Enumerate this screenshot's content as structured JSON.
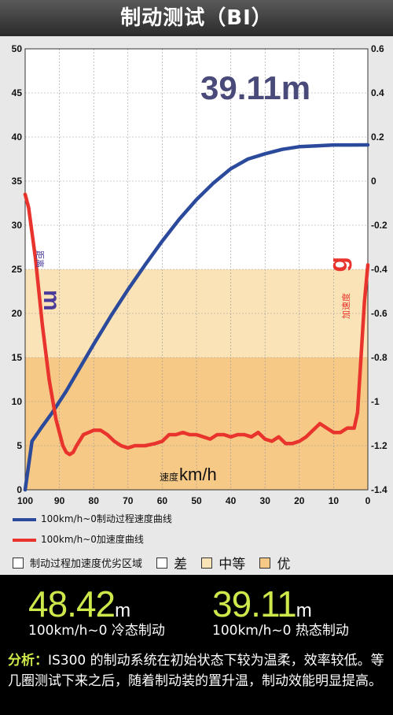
{
  "title": "制动测试（BI）",
  "chart_data": {
    "type": "line",
    "x_axis": {
      "ticks": [
        "100",
        "90",
        "80",
        "70",
        "60",
        "50",
        "40",
        "30",
        "20",
        "10",
        "0"
      ],
      "xlim": [
        100,
        0
      ],
      "unit_label": "速度",
      "unit": "km/h"
    },
    "y_left": {
      "ticks": [
        "0",
        "5",
        "10",
        "15",
        "20",
        "25",
        "30",
        "35",
        "40",
        "45",
        "50"
      ],
      "ylim": [
        0,
        50
      ],
      "label": "距离",
      "unit": "m"
    },
    "y_right": {
      "ticks": [
        "-1.4",
        "-1.2",
        "-1",
        "-0.8",
        "-0.6",
        "-0.4",
        "-0.2",
        "0",
        "0.2",
        "0.4",
        "0.6"
      ],
      "ylim": [
        -1.4,
        0.6
      ],
      "label": "加速度",
      "unit": "g"
    },
    "annotation": "39.11m",
    "zones": [
      {
        "name": "差",
        "color": "#ffffff",
        "range": [
          25,
          50
        ]
      },
      {
        "name": "中等",
        "color": "#fbe3b8",
        "range": [
          15,
          25
        ]
      },
      {
        "name": "优",
        "color": "#f7c986",
        "range": [
          0,
          15
        ]
      }
    ],
    "series": [
      {
        "name": "100km/h~0制动过程速度曲线",
        "color": "#2b4a9c",
        "axis": "left",
        "x": [
          100,
          98,
          95,
          92,
          88,
          85,
          80,
          75,
          70,
          65,
          60,
          55,
          50,
          45,
          40,
          35,
          30,
          25,
          20,
          15,
          10,
          5,
          0
        ],
        "y": [
          0,
          5.5,
          7.2,
          8.8,
          11.2,
          13.2,
          16.5,
          19.7,
          22.7,
          25.5,
          28.2,
          30.7,
          32.9,
          34.8,
          36.4,
          37.5,
          38.1,
          38.6,
          38.9,
          39.0,
          39.1,
          39.1,
          39.11
        ]
      },
      {
        "name": "100km/h~0加速度曲线",
        "color": "#e8342c",
        "axis": "right",
        "x": [
          100,
          99,
          97,
          95,
          93,
          91,
          89,
          88,
          87,
          86,
          85,
          83,
          80,
          78,
          76,
          74,
          72,
          70,
          68,
          65,
          62,
          60,
          58,
          56,
          54,
          52,
          50,
          48,
          46,
          44,
          42,
          40,
          38,
          36,
          34,
          32,
          30,
          28,
          26,
          24,
          22,
          20,
          18,
          16,
          14,
          12,
          10,
          8,
          6,
          4,
          3,
          2,
          1,
          0
        ],
        "y": [
          -0.06,
          -0.12,
          -0.35,
          -0.65,
          -0.9,
          -1.08,
          -1.2,
          -1.23,
          -1.24,
          -1.23,
          -1.2,
          -1.15,
          -1.13,
          -1.13,
          -1.15,
          -1.18,
          -1.2,
          -1.21,
          -1.2,
          -1.2,
          -1.19,
          -1.18,
          -1.15,
          -1.15,
          -1.14,
          -1.15,
          -1.15,
          -1.16,
          -1.17,
          -1.15,
          -1.15,
          -1.16,
          -1.15,
          -1.15,
          -1.16,
          -1.14,
          -1.17,
          -1.18,
          -1.16,
          -1.19,
          -1.19,
          -1.18,
          -1.16,
          -1.13,
          -1.1,
          -1.12,
          -1.14,
          -1.14,
          -1.12,
          -1.12,
          -1.05,
          -0.8,
          -0.55,
          -0.38
        ]
      }
    ]
  },
  "legend": {
    "line1": "100km/h~0制动过程速度曲线",
    "line2": "100km/h~0加速度曲线",
    "zone_title": "制动过程加速度优劣区域",
    "zone_bad": "差",
    "zone_mid": "中等",
    "zone_good": "优"
  },
  "results": {
    "cold": {
      "value": "48.42",
      "unit": "m",
      "label": "100km/h~0 冷态制动"
    },
    "hot": {
      "value": "39.11",
      "unit": "m",
      "label": "100km/h~0 热态制动"
    }
  },
  "analysis": {
    "lead": "分析：",
    "text": "IS300 的制动系统在初始状态下较为温柔，效率较低。等几圈测试下来之后，随着制动装的置升温，制动效能明显提高。"
  }
}
